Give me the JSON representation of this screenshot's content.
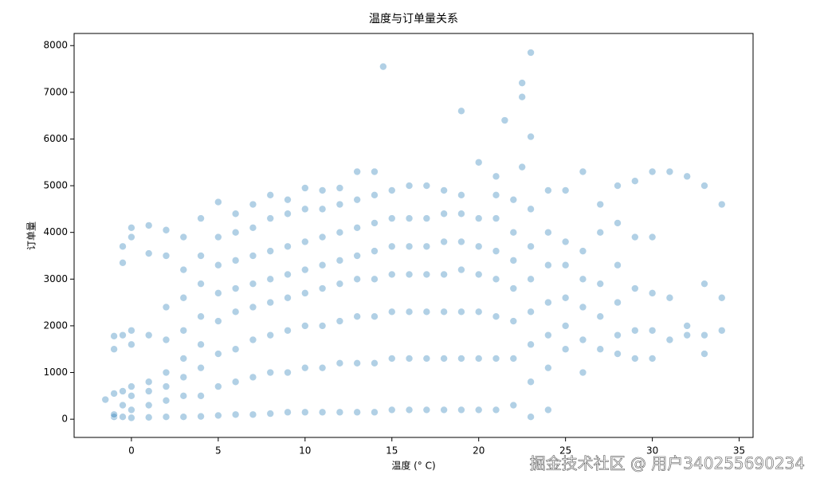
{
  "chart_data": {
    "type": "scatter",
    "title": "温度与订单量关系",
    "x_label": "温度 (° C)",
    "y_label": "订单量",
    "color": "#1f77b4",
    "xlim": [
      -3.3,
      35.8
    ],
    "ylim": [
      -390,
      8260
    ],
    "xticks": [
      0,
      5,
      10,
      15,
      20,
      25,
      30,
      35
    ],
    "yticks": [
      0,
      1000,
      2000,
      3000,
      4000,
      5000,
      6000,
      7000,
      8000
    ],
    "x": [
      -1.5,
      -1,
      -1,
      -1,
      -1,
      -1,
      -0.5,
      -0.5,
      -0.5,
      -0.5,
      -0.5,
      -0.5,
      0,
      0,
      0,
      0,
      0,
      0,
      0,
      0,
      1,
      1,
      1,
      1,
      1,
      1,
      1,
      2,
      2,
      2,
      2,
      2,
      2,
      2,
      2,
      3,
      3,
      3,
      3,
      3,
      3,
      3,
      3,
      4,
      4,
      4,
      4,
      4,
      4,
      4,
      4,
      5,
      5,
      5,
      5,
      5,
      5,
      5,
      5,
      6,
      6,
      6,
      6,
      6,
      6,
      6,
      6,
      7,
      7,
      7,
      7,
      7,
      7,
      7,
      7,
      8,
      8,
      8,
      8,
      8,
      8,
      8,
      8,
      9,
      9,
      9,
      9,
      9,
      9,
      9,
      9,
      10,
      10,
      10,
      10,
      10,
      10,
      10,
      10,
      11,
      11,
      11,
      11,
      11,
      11,
      11,
      11,
      12,
      12,
      12,
      12,
      12,
      12,
      12,
      12,
      13,
      13,
      13,
      13,
      13,
      13,
      13,
      13,
      14,
      14,
      14,
      14,
      14,
      14,
      14,
      14,
      15,
      15,
      15,
      15,
      15,
      15,
      15,
      16,
      16,
      16,
      16,
      16,
      16,
      16,
      17,
      17,
      17,
      17,
      17,
      17,
      17,
      18,
      18,
      18,
      18,
      18,
      18,
      18,
      19,
      19,
      19,
      19,
      19,
      19,
      19,
      20,
      20,
      20,
      20,
      20,
      20,
      20,
      21,
      21,
      21,
      21,
      21,
      21,
      21,
      21,
      22,
      22,
      22,
      22,
      22,
      22,
      22,
      23,
      23,
      23,
      23,
      23,
      23,
      23,
      24,
      24,
      24,
      24,
      24,
      24,
      24,
      25,
      25,
      25,
      25,
      25,
      25,
      26,
      26,
      26,
      26,
      26,
      26,
      27,
      27,
      27,
      27,
      27,
      28,
      28,
      28,
      28,
      28,
      28,
      29,
      29,
      29,
      29,
      29,
      30,
      30,
      30,
      30,
      30,
      31,
      31,
      31,
      32,
      32,
      32,
      33,
      33,
      33,
      33,
      34,
      34,
      34,
      14.5,
      19,
      21.5,
      22.5,
      22.5,
      23,
      23,
      22.5
    ],
    "values": [
      420,
      50,
      100,
      550,
      1500,
      1780,
      50,
      300,
      600,
      1800,
      3350,
      3700,
      30,
      200,
      500,
      700,
      1600,
      1900,
      3900,
      4100,
      40,
      300,
      600,
      800,
      1800,
      3550,
      4150,
      50,
      400,
      700,
      1000,
      1700,
      2400,
      3500,
      4050,
      50,
      500,
      900,
      1300,
      1900,
      2600,
      3200,
      3900,
      60,
      500,
      1100,
      1600,
      2200,
      2900,
      3500,
      4300,
      80,
      700,
      1400,
      2100,
      2700,
      3300,
      3900,
      4650,
      100,
      800,
      1500,
      2300,
      2800,
      3400,
      4000,
      4400,
      100,
      900,
      1700,
      2400,
      2900,
      3500,
      4100,
      4600,
      120,
      1000,
      1800,
      2500,
      3000,
      3600,
      4300,
      4800,
      150,
      1000,
      1900,
      2600,
      3100,
      3700,
      4400,
      4700,
      150,
      1100,
      2000,
      2700,
      3200,
      3800,
      4500,
      4950,
      150,
      1100,
      2000,
      2800,
      3300,
      3900,
      4500,
      4900,
      150,
      1200,
      2100,
      2900,
      3400,
      4000,
      4600,
      4950,
      150,
      1200,
      2200,
      3000,
      3500,
      4100,
      4700,
      5300,
      150,
      1200,
      2200,
      3000,
      3600,
      4200,
      4800,
      5300,
      200,
      1300,
      2300,
      3100,
      3700,
      4300,
      4900,
      200,
      1300,
      2300,
      3100,
      3700,
      4300,
      5000,
      200,
      1300,
      2300,
      3100,
      3700,
      4300,
      5000,
      200,
      1300,
      2300,
      3100,
      3800,
      4400,
      4900,
      200,
      1300,
      2300,
      3200,
      3800,
      4400,
      4800,
      200,
      1300,
      2300,
      3100,
      3700,
      4300,
      5500,
      200,
      1300,
      2200,
      3000,
      3600,
      4300,
      4800,
      5200,
      300,
      1300,
      2100,
      2800,
      3400,
      4000,
      4700,
      50,
      800,
      1600,
      2300,
      3000,
      3700,
      4500,
      200,
      1100,
      1800,
      2500,
      3300,
      4000,
      4900,
      1500,
      2000,
      2600,
      3300,
      3800,
      4900,
      1000,
      1700,
      2400,
      3000,
      3600,
      5300,
      1500,
      2200,
      2900,
      4000,
      4600,
      1400,
      1800,
      2500,
      3300,
      4200,
      5000,
      1300,
      1900,
      2800,
      3900,
      5100,
      1300,
      1900,
      2700,
      3900,
      5300,
      1700,
      2600,
      5300,
      1800,
      2000,
      5200,
      1400,
      1800,
      2900,
      5000,
      1900,
      2600,
      4600,
      7550,
      6600,
      6400,
      7200,
      6900,
      7850,
      6050,
      5400
    ],
    "watermark": "掘金技术社区 @ 用户340255690234"
  }
}
